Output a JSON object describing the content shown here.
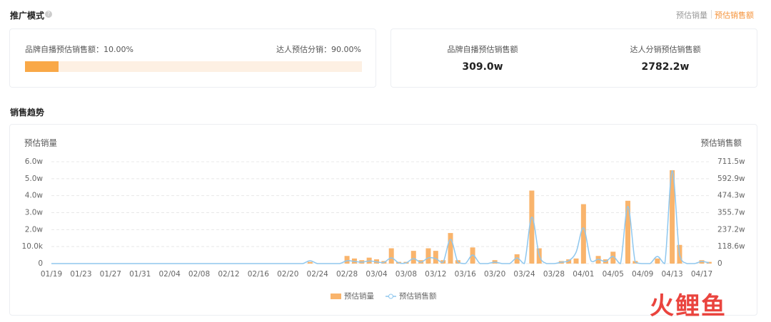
{
  "header": {
    "title": "推广模式",
    "toggle": [
      "预估销量",
      "预估销售额"
    ]
  },
  "share": {
    "brand": {
      "label": "品牌自播预估销售额：",
      "value": 10,
      "value_label": "10.00%"
    },
    "creator": {
      "label": "达人预估分销：",
      "value": 90,
      "value_label": "90.00%"
    }
  },
  "summary": [
    {
      "label": "品牌自播预估销售额",
      "value": "309.0w"
    },
    {
      "label": "达人分销预估销售额",
      "value": "2782.2w"
    }
  ],
  "section_title": "销售趋势",
  "watermark": "火鲤鱼",
  "chart_data": {
    "type": "bar",
    "ylabel": "预估销量",
    "y2label": "预估销售额",
    "categories": [
      "01/19",
      null,
      null,
      null,
      "01/23",
      null,
      null,
      null,
      "01/27",
      null,
      null,
      null,
      "01/31",
      null,
      null,
      null,
      "02/04",
      null,
      null,
      null,
      "02/08",
      null,
      null,
      null,
      "02/12",
      null,
      null,
      null,
      "02/16",
      null,
      null,
      null,
      "02/20",
      null,
      null,
      null,
      "02/24",
      null,
      null,
      null,
      "02/28",
      null,
      null,
      null,
      "03/04",
      null,
      null,
      null,
      "03/08",
      null,
      null,
      null,
      "03/12",
      null,
      null,
      null,
      "03/16",
      null,
      null,
      null,
      "03/20",
      null,
      null,
      null,
      "03/24",
      null,
      null,
      null,
      "03/28",
      null,
      null,
      null,
      "04/01",
      null,
      null,
      null,
      "04/05",
      null,
      null,
      null,
      "04/09",
      null,
      null,
      null,
      "04/13",
      null,
      null,
      null,
      "04/17",
      null
    ],
    "series": [
      {
        "name": "预估销量",
        "type": "bar",
        "color": "#f9b46c",
        "values": [
          0,
          0,
          0,
          0,
          0,
          0,
          0,
          0,
          0,
          0,
          0,
          0,
          0,
          0,
          0,
          0,
          0,
          0,
          0,
          0,
          0,
          0,
          0,
          0,
          0,
          0,
          0,
          0,
          0,
          0,
          0,
          0,
          0,
          0,
          0,
          0.1,
          0,
          0,
          0,
          0,
          0.45,
          0.3,
          0.2,
          0.35,
          0.25,
          0.15,
          0.9,
          0.1,
          0.1,
          0.75,
          0.2,
          0.9,
          0.75,
          0.2,
          1.8,
          0.2,
          0,
          0.95,
          0,
          0,
          0.2,
          0,
          0,
          0.55,
          0,
          4.3,
          0.9,
          0,
          0,
          0.15,
          0.25,
          0.3,
          3.5,
          0,
          0.45,
          0.25,
          0.7,
          0,
          3.7,
          0.15,
          0,
          0,
          0.3,
          0,
          5.5,
          1.1,
          0,
          0,
          0.2,
          0.1
        ]
      },
      {
        "name": "预估销售额",
        "type": "line",
        "axis": "y2",
        "color": "#8fc7ee",
        "values": [
          0,
          0,
          0,
          0,
          0,
          0,
          0,
          0,
          0,
          0,
          0,
          0,
          0,
          0,
          0,
          0,
          0,
          0,
          0,
          0,
          0,
          0,
          0,
          0,
          0,
          0,
          0,
          0,
          0,
          0,
          0,
          0,
          0,
          0,
          0,
          20,
          0,
          0,
          0,
          0,
          20,
          15,
          10,
          18,
          12,
          8,
          40,
          5,
          5,
          35,
          10,
          40,
          35,
          10,
          169,
          10,
          0,
          60,
          0,
          0,
          10,
          0,
          0,
          40,
          0,
          324,
          60,
          0,
          0,
          10,
          20,
          80,
          249,
          20,
          30,
          15,
          50,
          0,
          399,
          10,
          0,
          0,
          50,
          0,
          648,
          60,
          0,
          0,
          15,
          5
        ]
      }
    ],
    "ylim": [
      0,
      6
    ],
    "yticks": [
      0,
      {
        "value": 1,
        "label": "10.0k"
      },
      {
        "value": 2,
        "label": "2.0w"
      },
      {
        "value": 3,
        "label": "3.0w"
      },
      {
        "value": 4,
        "label": "4.0w"
      },
      {
        "value": 5,
        "label": "5.0w"
      },
      {
        "value": 6,
        "label": "6.0w"
      }
    ],
    "y2lim": [
      0,
      711.5
    ],
    "y2ticks": [
      0,
      {
        "value": 118.6,
        "label": "118.6w"
      },
      {
        "value": 237.2,
        "label": "237.2w"
      },
      {
        "value": 355.7,
        "label": "355.7w"
      },
      {
        "value": 474.3,
        "label": "474.3w"
      },
      {
        "value": 592.9,
        "label": "592.9w"
      },
      {
        "value": 711.5,
        "label": "711.5w"
      }
    ],
    "grid": true
  }
}
